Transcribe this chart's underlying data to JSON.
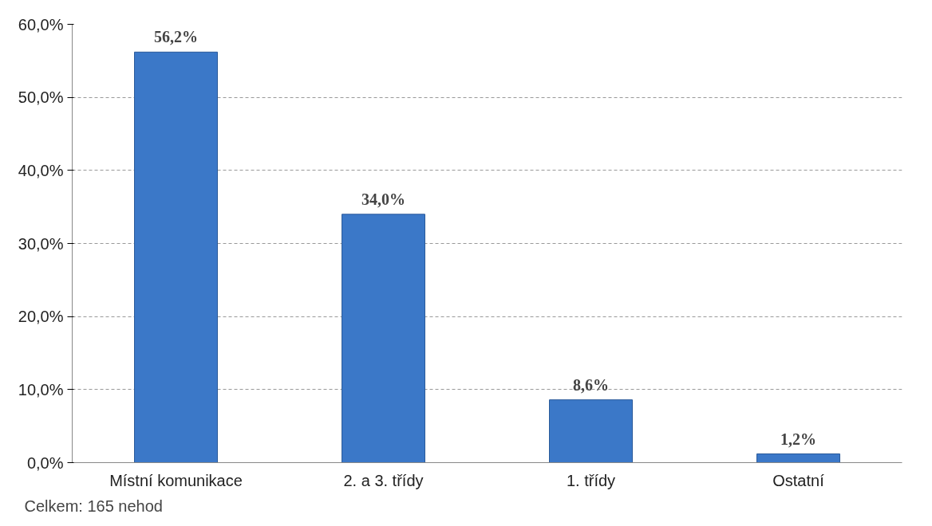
{
  "chart_data": {
    "type": "bar",
    "categories": [
      "Místní komunikace",
      "2. a 3. třídy",
      "1. třídy",
      "Ostatní"
    ],
    "values": [
      56.2,
      34.0,
      8.6,
      1.2
    ],
    "color": "#3b78c8",
    "value_labels": [
      "56,2%",
      "34,0%",
      "8,6%",
      "1,2%"
    ],
    "ylim": [
      0,
      60
    ],
    "yticks": [
      {
        "value": 0,
        "label": "0,0%"
      },
      {
        "value": 10,
        "label": "10,0%"
      },
      {
        "value": 20,
        "label": "20,0%"
      },
      {
        "value": 30,
        "label": "30,0%"
      },
      {
        "value": 40,
        "label": "40,0%"
      },
      {
        "value": 50,
        "label": "50,0%"
      },
      {
        "value": 60,
        "label": "60,0%"
      }
    ],
    "grid": "y",
    "annotations": [
      "Celkem:  165 nehod"
    ]
  }
}
